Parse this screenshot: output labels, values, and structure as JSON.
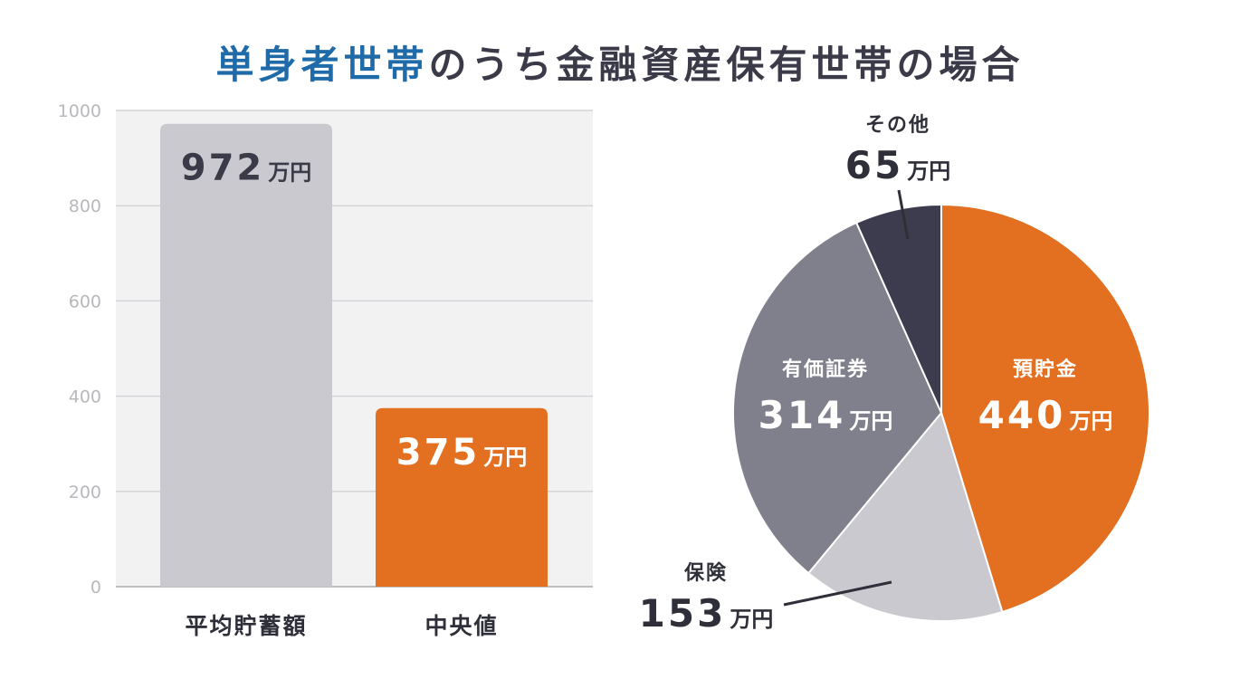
{
  "title": {
    "highlight": "単身者世帯",
    "rest": "のうち金融資産保有世帯の場合"
  },
  "colors": {
    "title_highlight": "#1f6aa8",
    "title_text": "#3a3a48",
    "bar_average": "#c9c9cf",
    "bar_median": "#e36f21",
    "plot_bg": "#f2f2f3",
    "pie_deposit": "#e36f21",
    "pie_insurance": "#c9c9cf",
    "pie_securities": "#80808c",
    "pie_other": "#3c3c4e"
  },
  "chart_data": [
    {
      "type": "bar",
      "title": "",
      "xlabel": "",
      "ylabel": "",
      "ylim": [
        0,
        1000
      ],
      "yticks": [
        0,
        200,
        400,
        600,
        800,
        1000
      ],
      "grid": true,
      "categories": [
        "平均貯蓄額",
        "中央値"
      ],
      "values": [
        972,
        375
      ],
      "value_labels": [
        "972",
        "375"
      ],
      "unit": "万円"
    },
    {
      "type": "pie",
      "title": "",
      "unit": "万円",
      "slices": [
        {
          "label": "預貯金",
          "value": 440,
          "value_label": "440"
        },
        {
          "label": "保険",
          "value": 153,
          "value_label": "153"
        },
        {
          "label": "有価証券",
          "value": 314,
          "value_label": "314"
        },
        {
          "label": "その他",
          "value": 65,
          "value_label": "65"
        }
      ]
    }
  ]
}
